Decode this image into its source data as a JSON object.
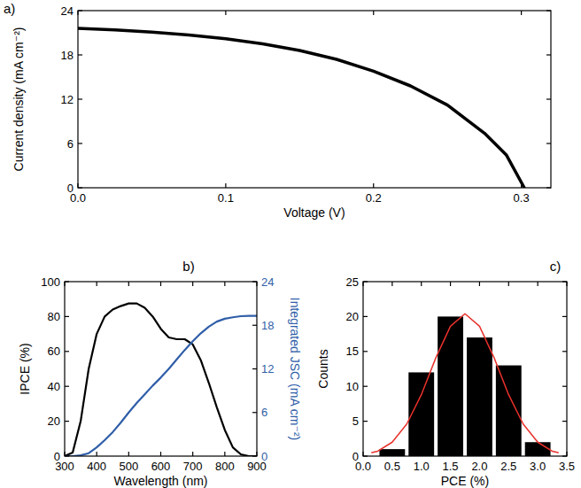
{
  "chart_data": [
    {
      "type": "line",
      "title": "a)",
      "x_label": "Voltage (V)",
      "y_label": "Current density (mA cm⁻²)",
      "x": [
        0,
        0.025,
        0.05,
        0.075,
        0.1,
        0.125,
        0.15,
        0.175,
        0.2,
        0.225,
        0.25,
        0.275,
        0.29,
        0.302
      ],
      "series": [
        {
          "color": "#000000",
          "values": [
            21.6,
            21.4,
            21.1,
            20.7,
            20.2,
            19.5,
            18.6,
            17.4,
            15.8,
            13.8,
            11.2,
            7.4,
            4.4,
            0
          ]
        }
      ],
      "xlim": [
        0,
        0.32
      ],
      "xticks": [
        {
          "value": 0,
          "label": "0.0"
        },
        0.1,
        0.2,
        0.3
      ],
      "ylim": [
        0,
        24
      ],
      "yticks": [
        0,
        6,
        12,
        18,
        24
      ]
    },
    {
      "type": "line",
      "title": "b)",
      "x_label": "Wavelength (nm)",
      "y_label": "IPCE (%)",
      "y2_label": "Integrated JSC (mA cm⁻²)",
      "x": [
        300,
        325,
        350,
        375,
        400,
        425,
        450,
        475,
        500,
        525,
        550,
        575,
        600,
        625,
        650,
        675,
        700,
        725,
        750,
        775,
        800,
        825,
        850,
        875,
        900
      ],
      "series": [
        {
          "color": "#000000",
          "values": [
            0,
            2,
            20,
            50,
            70,
            80,
            84,
            86,
            87.5,
            87.5,
            85,
            80,
            73,
            68,
            67,
            67,
            64,
            55,
            42,
            28,
            15,
            5,
            1,
            0,
            0
          ]
        },
        {
          "color": "#2f5ea8",
          "axis": "y2",
          "values": [
            0,
            0,
            0.1,
            0.4,
            1.2,
            2.2,
            3.3,
            4.6,
            6.0,
            7.3,
            8.5,
            9.7,
            10.8,
            12.0,
            13.3,
            14.6,
            15.8,
            16.9,
            17.8,
            18.5,
            18.9,
            19.1,
            19.25,
            19.3,
            19.3
          ]
        }
      ],
      "xlim": [
        300,
        900
      ],
      "xticks": [
        300,
        400,
        500,
        600,
        700,
        800,
        900
      ],
      "ylim": [
        0,
        100
      ],
      "yticks": [
        0,
        20,
        40,
        60,
        80,
        100
      ],
      "y2lim": [
        0,
        24
      ],
      "y2ticks": [
        0,
        6,
        12,
        18,
        24
      ]
    },
    {
      "type": "histogram",
      "title": "c)",
      "x_label": "PCE (%)",
      "y_label": "Counts",
      "color": "#000000",
      "bins": [
        0.25,
        0.75,
        1.25,
        1.75,
        2.25,
        2.75,
        3.25
      ],
      "counts": [
        1,
        12,
        20,
        17,
        13,
        2
      ],
      "series": [
        {
          "type": "line",
          "color": "#e8312b",
          "x": [
            0.15,
            0.25,
            0.5,
            0.75,
            1.0,
            1.25,
            1.5,
            1.75,
            2.0,
            2.25,
            2.5,
            2.75,
            3.0,
            3.25,
            3.35
          ],
          "values": [
            0.5,
            0.7,
            2.0,
            4.6,
            8.8,
            14.1,
            18.6,
            20.4,
            18.6,
            14.1,
            8.8,
            4.6,
            2.0,
            0.7,
            0.5
          ]
        }
      ],
      "xlim": [
        0,
        3.5
      ],
      "xticks": [
        {
          "value": 0,
          "label": "0.0"
        },
        0.5,
        {
          "value": 1,
          "label": "1.0"
        },
        1.5,
        {
          "value": 2,
          "label": "2.0"
        },
        2.5,
        {
          "value": 3,
          "label": "3.0"
        },
        3.5
      ],
      "ylim": [
        0,
        25
      ],
      "yticks": [
        0,
        5,
        10,
        15,
        20,
        25
      ]
    }
  ]
}
